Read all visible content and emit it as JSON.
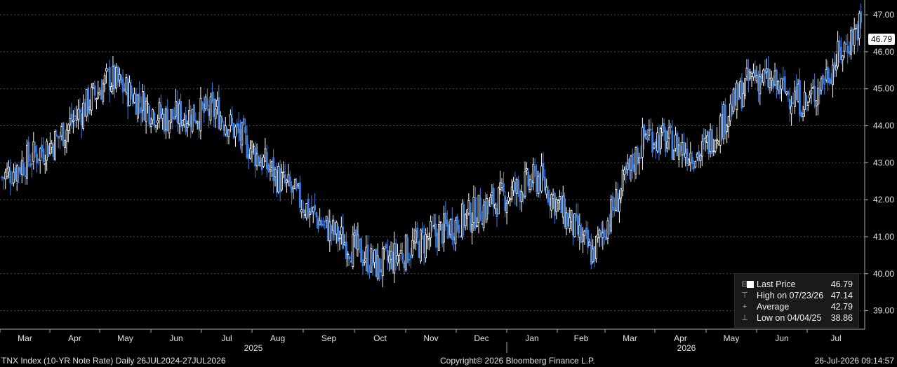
{
  "chart_data": {
    "type": "candlestick",
    "title": "",
    "series_name": "TNX Index (10-YR Note Rate)",
    "frequency": "Daily",
    "ylim": [
      38.5,
      47.4
    ],
    "y_ticks": [
      "39.00",
      "40.00",
      "41.00",
      "42.00",
      "43.00",
      "44.00",
      "45.00",
      "46.00",
      "47.00"
    ],
    "x_month_labels": [
      "Mar",
      "Apr",
      "May",
      "Jun",
      "Jul",
      "Aug",
      "Sep",
      "Oct",
      "Nov",
      "Dec",
      "Jan",
      "Feb",
      "Mar",
      "Apr",
      "May",
      "Jun",
      "Jul"
    ],
    "x_year_labels": [
      "2025",
      "2026"
    ],
    "close_path_by_month": [
      {
        "month": "Mar 2025",
        "close": 42.6
      },
      {
        "month": "Apr 2025",
        "close": 43.6
      },
      {
        "month": "May 2025",
        "close": 45.3
      },
      {
        "month": "Jun 2025",
        "close": 44.2
      },
      {
        "month": "Jul 2025",
        "close": 44.4
      },
      {
        "month": "Aug 2025",
        "close": 42.8
      },
      {
        "month": "Sep 2025",
        "close": 41.3
      },
      {
        "month": "Oct 2025",
        "close": 40.2
      },
      {
        "month": "Nov 2025",
        "close": 41.0
      },
      {
        "month": "Dec 2025",
        "close": 41.8
      },
      {
        "month": "Jan 2026",
        "close": 42.6
      },
      {
        "month": "Feb 2026",
        "close": 40.5
      },
      {
        "month": "Mar 2026",
        "close": 43.8
      },
      {
        "month": "Apr 2026",
        "close": 43.2
      },
      {
        "month": "May 2026",
        "close": 45.4
      },
      {
        "month": "Jun 2026",
        "close": 44.6
      },
      {
        "month": "Jul 2026",
        "close": 46.79
      }
    ],
    "up_color": "#ffffff",
    "down_color": "#3d7fe0",
    "grid": true,
    "legend_position": "bottom-right"
  },
  "last_price_tag": "46.79",
  "legend": {
    "last_price_label": "Last Price",
    "last_price_value": "46.79",
    "high_label": "High on 07/23/26",
    "high_value": "47.14",
    "average_label": "Average",
    "average_value": "42.79",
    "low_label": "Low on 04/04/25",
    "low_value": "38.86"
  },
  "footer": {
    "left": "TNX Index (10-YR Note Rate) Daily 26JUL2024-27JUL2026",
    "center": "Copyright© 2026 Bloomberg Finance L.P.",
    "right": "26-Jul-2026 09:14:57"
  }
}
